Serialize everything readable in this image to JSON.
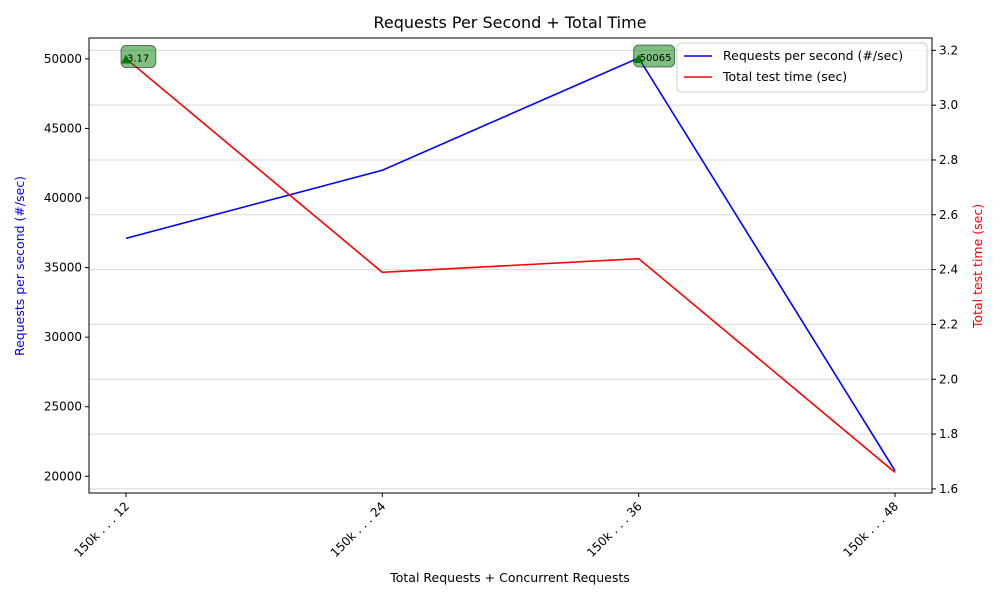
{
  "chart_data": {
    "type": "line",
    "title": "Requests Per Second + Total Time",
    "xlabel": "Total Requests + Concurrent Requests",
    "ylabel_left": "Requests per second (#/sec)",
    "ylabel_right": "Total test time (sec)",
    "categories": [
      "150k . . . 12",
      "150k . . . 24",
      "150k . . . 36",
      "150k . . . 48"
    ],
    "y_left_lim": [
      18800,
      51500
    ],
    "y_left_ticks": [
      20000,
      25000,
      30000,
      35000,
      40000,
      45000,
      50000
    ],
    "y_right_lim": [
      1.585,
      3.245
    ],
    "y_right_ticks": [
      "1.6",
      "1.8",
      "2.0",
      "2.2",
      "2.4",
      "2.6",
      "2.8",
      "3.0",
      "3.2"
    ],
    "grid": "horizontal (right axis)",
    "legend_position": "top-right",
    "series": [
      {
        "name": "Requests per second (#/sec)",
        "axis": "left",
        "color": "#0000ff",
        "values": [
          37100,
          42000,
          50065,
          20400
        ]
      },
      {
        "name": "Total test time (sec)",
        "axis": "right",
        "color": "#ff0000",
        "values": [
          3.17,
          2.39,
          2.44,
          1.66
        ]
      }
    ],
    "annotations": [
      {
        "text": "3.17",
        "category_index": 0,
        "axis": "right",
        "value": 3.17,
        "color": "#008000"
      },
      {
        "text": "50065",
        "category_index": 2,
        "axis": "left",
        "value": 50065,
        "color": "#008000"
      }
    ]
  }
}
